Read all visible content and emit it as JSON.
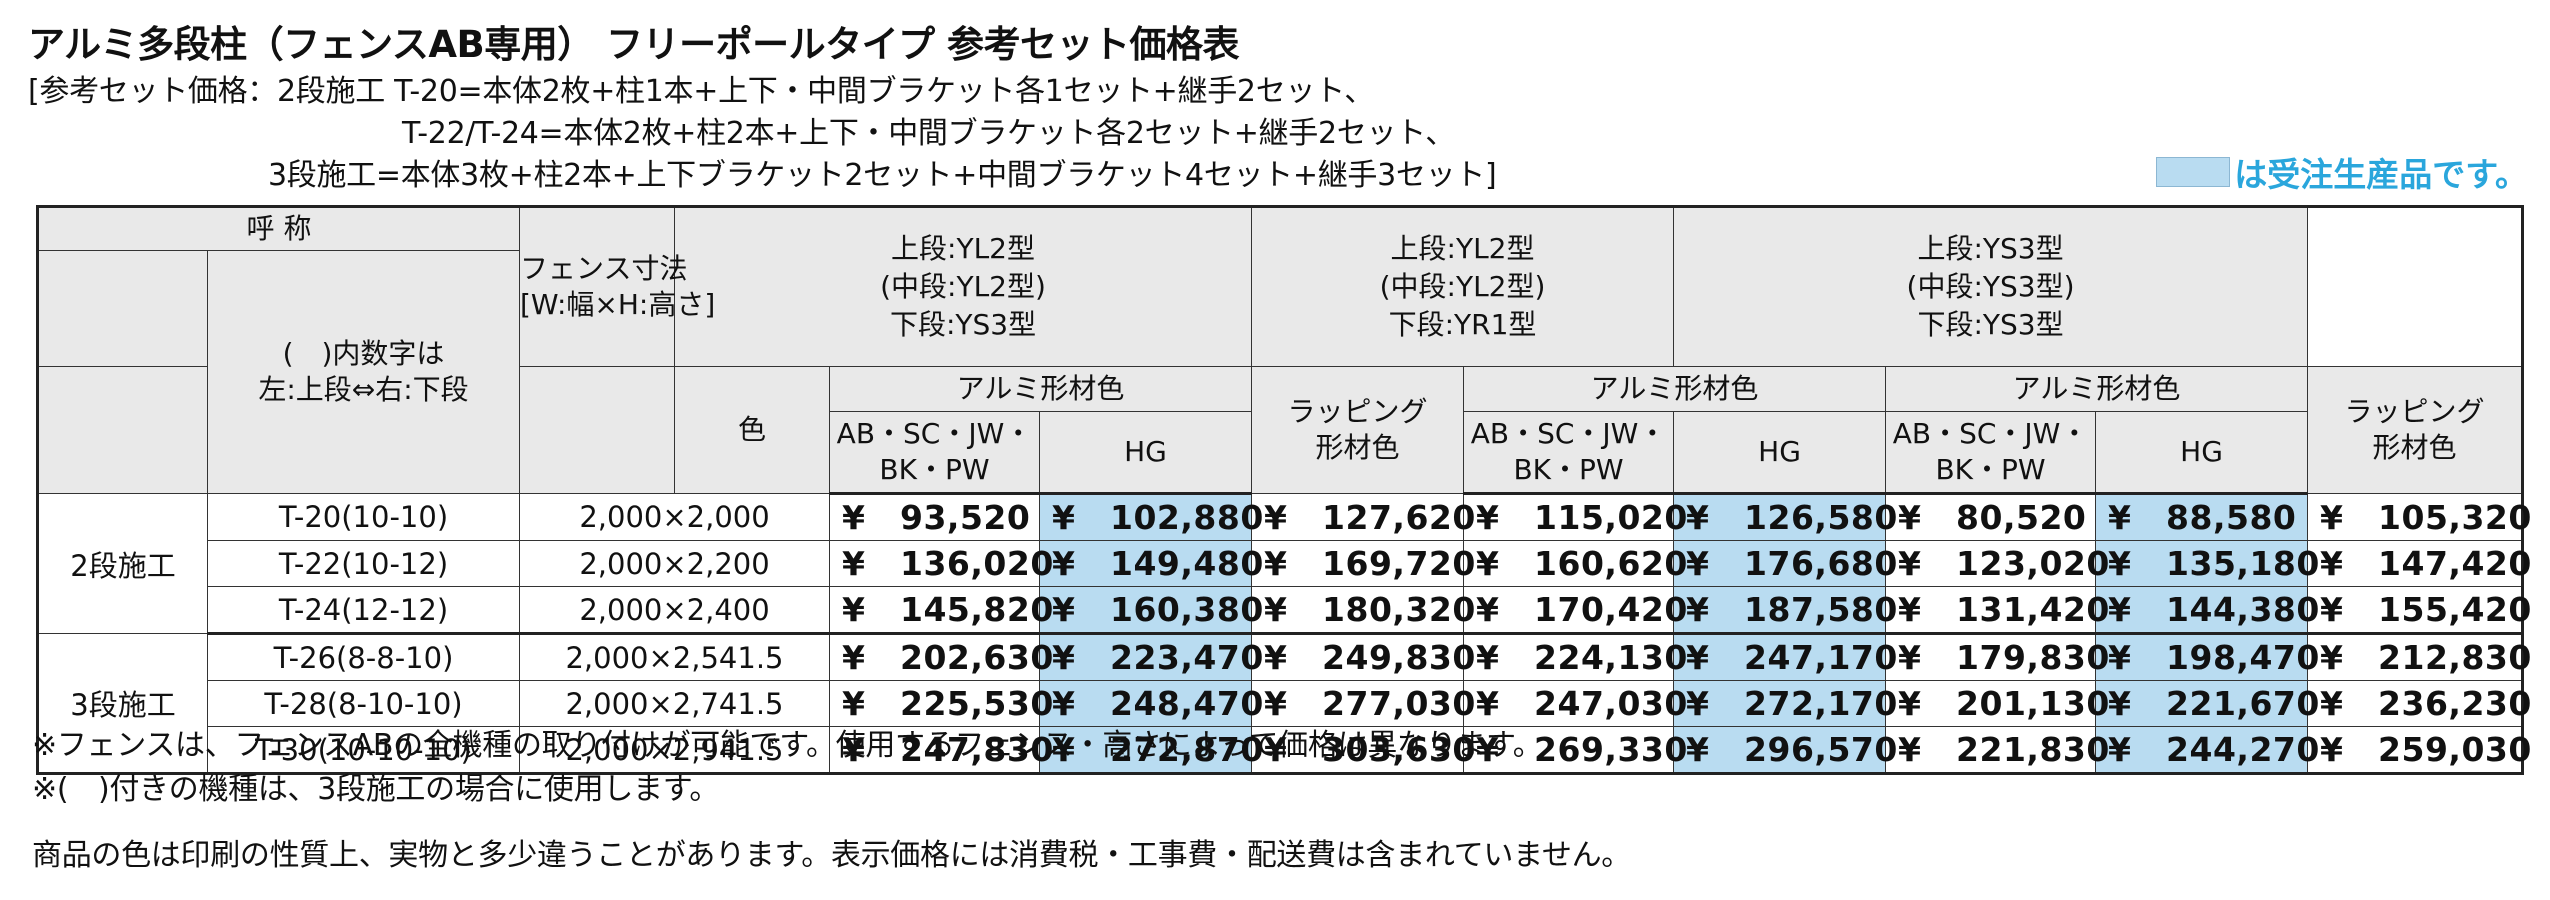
{
  "title": "アルミ多段柱（フェンスAB専用） フリーポールタイプ 参考セット価格表",
  "set_notes": [
    "[参考セット価格：2段施工 T-20=本体2枚+柱1本+上下・中間ブラケット各1セット+継手2セット、",
    "T-22/T-24=本体2枚+柱2本+上下・中間ブラケット各2セット+継手2セット、",
    "3段施工=本体3枚+柱2本+上下ブラケット2セット+中間ブラケット4セット+継手3セット]"
  ],
  "legend": {
    "text": "は受注生産品です。",
    "swatch_color": "#b9dcf1"
  },
  "header": {
    "name": "呼 称",
    "name_sub": [
      "(　)内数字は",
      "左:上段⇔右:下段"
    ],
    "size": [
      "フェンス寸法",
      "[W:幅×H:高さ]"
    ],
    "color": "色",
    "groups": [
      {
        "lines": [
          "上段:YL2型",
          "(中段:YL2型)",
          "下段:YS3型"
        ]
      },
      {
        "lines": [
          "上段:YL2型",
          "(中段:YL2型)",
          "下段:YR1型"
        ]
      },
      {
        "lines": [
          "上段:YS3型",
          "(中段:YS3型)",
          "下段:YS3型"
        ]
      }
    ],
    "alumi": "アルミ形材色",
    "std_colors": [
      "AB・SC・JW・",
      "BK・PW"
    ],
    "hg": "HG",
    "wrap": [
      "ラッピング",
      "形材色"
    ]
  },
  "currency": "¥",
  "sections": [
    {
      "label": "2段施工",
      "rows": [
        {
          "name": "T-20(10-10)",
          "size": "2,000×2,000",
          "prices": [
            "93,520",
            "102,880",
            "127,620",
            "115,020",
            "126,580",
            "80,520",
            "88,580",
            "105,320"
          ]
        },
        {
          "name": "T-22(10-12)",
          "size": "2,000×2,200",
          "prices": [
            "136,020",
            "149,480",
            "169,720",
            "160,620",
            "176,680",
            "123,020",
            "135,180",
            "147,420"
          ]
        },
        {
          "name": "T-24(12-12)",
          "size": "2,000×2,400",
          "prices": [
            "145,820",
            "160,380",
            "180,320",
            "170,420",
            "187,580",
            "131,420",
            "144,380",
            "155,420"
          ]
        }
      ]
    },
    {
      "label": "3段施工",
      "rows": [
        {
          "name": "T-26(8-8-10)",
          "size": "2,000×2,541.5",
          "prices": [
            "202,630",
            "223,470",
            "249,830",
            "224,130",
            "247,170",
            "179,830",
            "198,470",
            "212,830"
          ]
        },
        {
          "name": "T-28(8-10-10)",
          "size": "2,000×2,741.5",
          "prices": [
            "225,530",
            "248,470",
            "277,030",
            "247,030",
            "272,170",
            "201,130",
            "221,670",
            "236,230"
          ]
        },
        {
          "name": "T-30(10-10-10)",
          "size": "2,000×2,941.5",
          "prices": [
            "247,830",
            "272,870",
            "303,630",
            "269,330",
            "296,570",
            "221,830",
            "244,270",
            "259,030"
          ]
        }
      ]
    }
  ],
  "footnotes": [
    "※フェンスは、フェンスABの全機種の取り付けが可能です。使用するフェンス・高さによって価格は異なります。",
    "※(　)付きの機種は、3段施工の場合に使用します。",
    "商品の色は印刷の性質上、実物と多少違うことがあります。表示価格には消費税・工事費・配送費は含まれていません。"
  ]
}
